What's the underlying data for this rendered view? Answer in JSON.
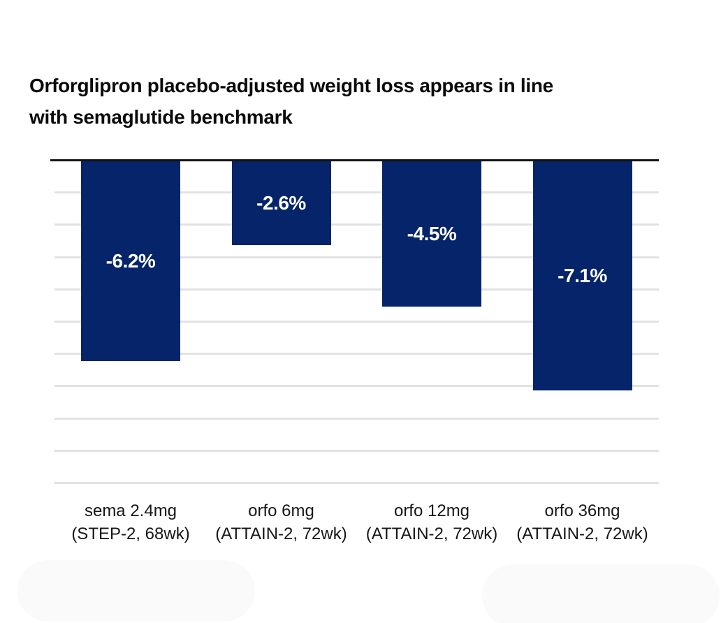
{
  "title": {
    "lines": [
      "Orforglipron placebo-adjusted weight loss appears in line",
      "with semaglutide benchmark"
    ]
  },
  "chart_data": {
    "type": "bar",
    "orientation": "vertical",
    "title": "Orforglipron placebo-adjusted weight loss appears in line with semaglutide benchmark",
    "xlabel": "",
    "ylabel": "",
    "ylim": [
      -10,
      0
    ],
    "grid": true,
    "gridline_interval_pct": 1,
    "gridline_count_below_zero": 10,
    "categories": [
      "sema 2.4mg (STEP-2, 68wk)",
      "orfo 6mg (ATTAIN-2, 72wk)",
      "orfo 12mg (ATTAIN-2, 72wk)",
      "orfo 36mg (ATTAIN-2, 72wk)"
    ],
    "values": [
      -6.2,
      -2.6,
      -4.5,
      -7.1
    ],
    "bars": [
      {
        "category_line1": "sema 2.4mg",
        "category_line2": "(STEP-2, 68wk)",
        "value": -6.2,
        "value_label": "-6.2%"
      },
      {
        "category_line1": "orfo 6mg",
        "category_line2": "(ATTAIN-2, 72wk)",
        "value": -2.6,
        "value_label": "-2.6%"
      },
      {
        "category_line1": "orfo 12mg",
        "category_line2": "(ATTAIN-2, 72wk)",
        "value": -4.5,
        "value_label": "-4.5%"
      },
      {
        "category_line1": "orfo 36mg",
        "category_line2": "(ATTAIN-2, 72wk)",
        "value": -7.1,
        "value_label": "-7.1%"
      }
    ],
    "colors": {
      "bar": "#06246a",
      "value_label": "#ffffff",
      "gridline": "#e2e2e2",
      "zero_axis": "#131313",
      "title_text": "#0b0b0b",
      "category_text": "#161616",
      "background": "#ffffff"
    },
    "legend": null
  }
}
